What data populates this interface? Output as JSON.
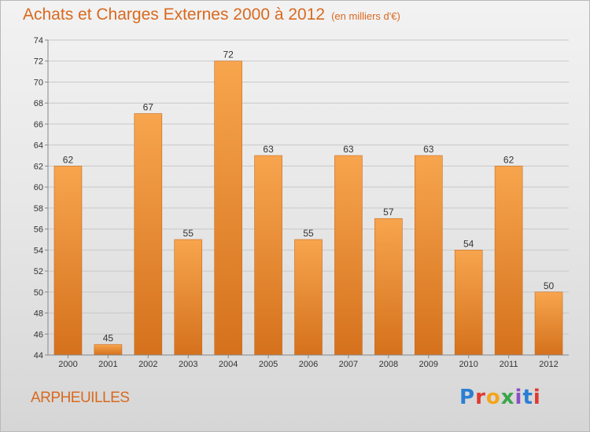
{
  "header": {
    "title": "Achats et Charges Externes 2000 à 2012",
    "subtitle": "(en milliers d'€)"
  },
  "footer": {
    "town": "ARPHEUILLES",
    "logo_text": "Proxiti",
    "logo_colors": [
      "#2a7fd4",
      "#e03a2f",
      "#f4a51c",
      "#3aa54a",
      "#8a4fc4",
      "#2a7fd4",
      "#e03a2f"
    ]
  },
  "colors": {
    "bar_light": "#f7a54e",
    "bar_dark": "#d5711c",
    "title": "#d9691f",
    "grid": "#c8c8c8",
    "axis": "#888888",
    "text": "#333333"
  },
  "chart_data": {
    "type": "bar",
    "categories": [
      "2000",
      "2001",
      "2002",
      "2003",
      "2004",
      "2005",
      "2006",
      "2007",
      "2008",
      "2009",
      "2010",
      "2011",
      "2012"
    ],
    "values": [
      62,
      45,
      67,
      55,
      72,
      63,
      55,
      63,
      57,
      63,
      54,
      62,
      50
    ],
    "ylim": [
      44,
      74
    ],
    "yticks": [
      44,
      46,
      48,
      50,
      52,
      54,
      56,
      58,
      60,
      62,
      64,
      66,
      68,
      70,
      72,
      74
    ],
    "grid": true,
    "data_labels": true
  }
}
